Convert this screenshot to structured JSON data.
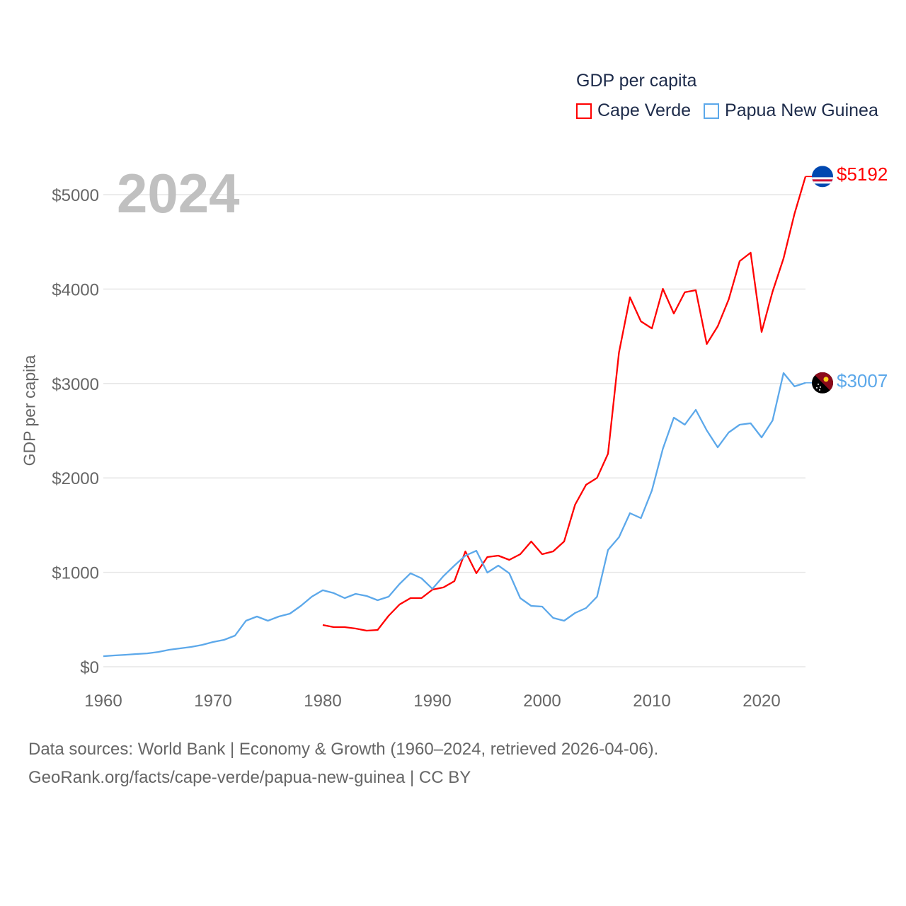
{
  "chart_data": {
    "type": "line",
    "title": "2024",
    "ylabel": "GDP per capita",
    "xlabel": "",
    "xlim": [
      1960,
      2024
    ],
    "ylim": [
      0,
      5000
    ],
    "x_ticks": [
      1960,
      1970,
      1980,
      1990,
      2000,
      2010,
      2020
    ],
    "x_tick_labels": [
      "1960",
      "1970",
      "1980",
      "1990",
      "2000",
      "2010",
      "2020"
    ],
    "y_ticks": [
      0,
      1000,
      2000,
      3000,
      4000,
      5000
    ],
    "y_tick_labels": [
      "$0",
      "$1000",
      "$2000",
      "$3000",
      "$4000",
      "$5000"
    ],
    "grid": true,
    "legend_title": "GDP per capita",
    "legend_position": "top-right",
    "series": [
      {
        "name": "Cape Verde",
        "color": "#ff0000",
        "end_label": "$5192",
        "flag": "cape-verde",
        "start_year": 1980,
        "values": [
          442,
          420,
          420,
          405,
          382,
          390,
          540,
          660,
          727,
          727,
          817,
          840,
          907,
          1222,
          990,
          1162,
          1177,
          1132,
          1192,
          1327,
          1192,
          1222,
          1327,
          1717,
          1927,
          2000,
          2256,
          3328,
          3913,
          3658,
          3583,
          4003,
          3741,
          3966,
          3988,
          3418,
          3606,
          3890,
          4295,
          4385,
          3546,
          3973,
          4325,
          4798,
          5192
        ]
      },
      {
        "name": "Papua New Guinea",
        "color": "#5ca8ea",
        "end_label": "$3007",
        "flag": "papua-new-guinea",
        "start_year": 1960,
        "values": [
          112,
          120,
          127,
          135,
          142,
          157,
          180,
          195,
          210,
          232,
          262,
          285,
          330,
          487,
          532,
          487,
          532,
          562,
          645,
          742,
          810,
          780,
          727,
          772,
          750,
          705,
          742,
          877,
          990,
          937,
          825,
          960,
          1072,
          1177,
          1229,
          997,
          1072,
          990,
          727,
          645,
          637,
          517,
          487,
          570,
          622,
          742,
          1237,
          1372,
          1627,
          1574,
          1867,
          2309,
          2639,
          2564,
          2721,
          2504,
          2324,
          2481,
          2564,
          2579,
          2429,
          2609,
          3111,
          2969,
          3007
        ]
      }
    ]
  },
  "footer": {
    "line1": "Data sources: World Bank | Economy & Growth (1960–2024, retrieved 2026-04-06).",
    "line2": "GeoRank.org/facts/cape-verde/papua-new-guinea | CC BY"
  }
}
